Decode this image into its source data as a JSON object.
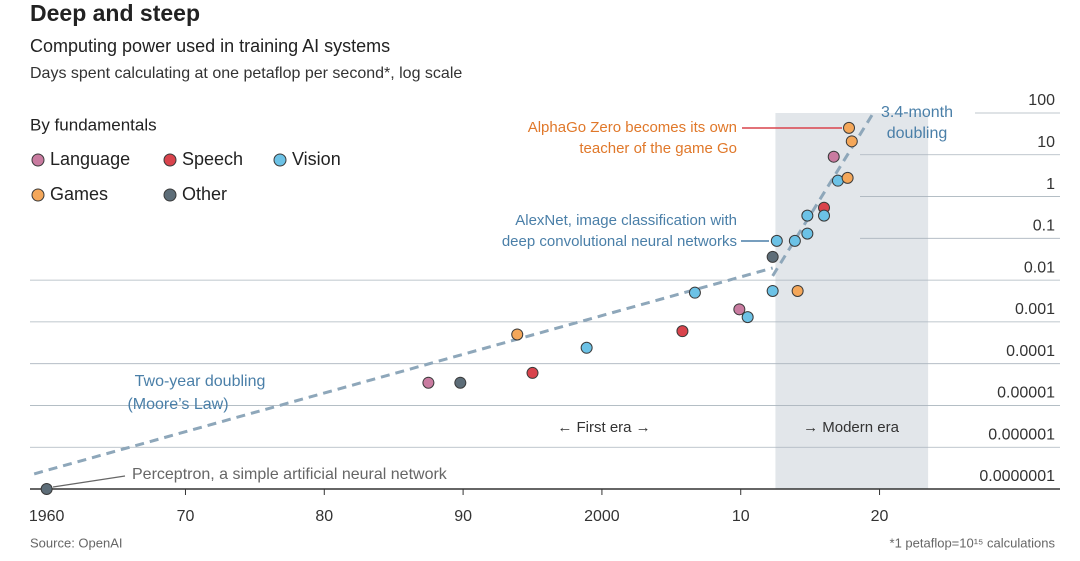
{
  "chart_data": {
    "type": "scatter",
    "title": "Deep and steep",
    "subtitle": "Computing power used in training AI systems",
    "y_label": "Days spent calculating at one petaflop per second*, log scale",
    "legend_title": "By fundamentals",
    "source": "Source: OpenAI",
    "footnote": "*1 petaflop=10¹⁵ calculations",
    "log_y": true,
    "grid": true,
    "xlim": [
      1958.8,
      2033
    ],
    "ylim": [
      1e-07,
      100
    ],
    "xticks": [
      1960,
      {
        "value": 1970,
        "label": "70"
      },
      {
        "value": 1980,
        "label": "80"
      },
      {
        "value": 1990,
        "label": "90"
      },
      2000,
      {
        "value": 2010,
        "label": "10"
      },
      {
        "value": 2020,
        "label": "20"
      }
    ],
    "yticks": [
      {
        "value": 1e-07,
        "label": "0.0000001"
      },
      1e-06,
      1e-05,
      0.0001,
      0.001,
      0.01,
      0.1,
      1,
      10,
      100
    ],
    "series": [
      {
        "name": "Language",
        "color": "#c97ba0",
        "x": [
          1987.5,
          2009.9,
          2016.7
        ],
        "values": [
          3.5e-05,
          0.002,
          9
        ]
      },
      {
        "name": "Speech",
        "color": "#d9434c",
        "x": [
          1995.0,
          2005.8,
          2016.0
        ],
        "values": [
          6e-05,
          0.0006,
          0.54
        ]
      },
      {
        "name": "Vision",
        "color": "#6cc2e6",
        "x": [
          1998.9,
          2006.7,
          2010.5,
          2012.3,
          2012.6,
          2013.9,
          2014.8,
          2014.8,
          2016.0,
          2017.0
        ],
        "values": [
          0.00024,
          0.005,
          0.0013,
          0.0055,
          0.087,
          0.087,
          0.13,
          0.35,
          0.35,
          2.4
        ]
      },
      {
        "name": "Games",
        "color": "#f4a75a",
        "x": [
          1993.9,
          2014.1,
          2017.7,
          2018.0,
          2017.8
        ],
        "values": [
          0.0005,
          0.0055,
          2.8,
          21,
          44
        ]
      },
      {
        "name": "Other",
        "color": "#5d6d78",
        "x": [
          1960,
          1989.8,
          2012.3
        ],
        "values": [
          1e-07,
          3.5e-05,
          0.036
        ]
      }
    ],
    "trend_lines": [
      {
        "x": [
          1959.1,
          2012.3
        ],
        "values": [
          2.3e-07,
          0.0195
        ]
      },
      {
        "x": [
          2012.3,
          2019.55
        ],
        "values": [
          0.0126,
          100
        ]
      }
    ],
    "modern_era_span": [
      2012.5,
      2023.5
    ],
    "annotations": [
      "Two-year doubling",
      "(Moore’s Law)",
      "3.4-month",
      "doubling",
      "AlphaGo Zero becomes its own",
      "teacher of the game Go",
      "AlexNet, image classification with",
      "deep convolutional neural networks",
      "Perceptron, a simple artificial neural network",
      "← First era →",
      "→ Modern era"
    ]
  }
}
